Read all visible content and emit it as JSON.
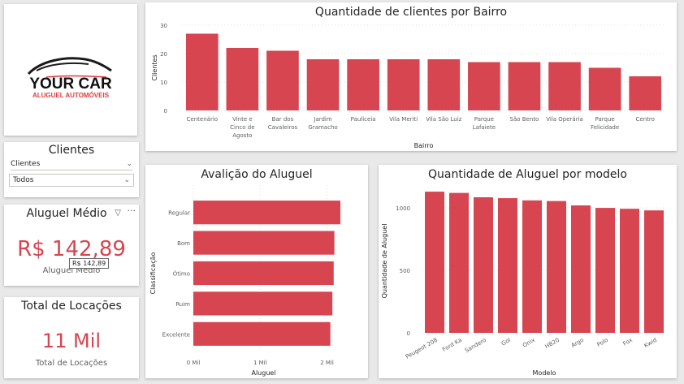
{
  "logo": {
    "brand": "YOUR CAR",
    "tagline": "ALUGUEL AUTOMÓVEIS",
    "accent": "#e03a3e"
  },
  "slicer": {
    "title": "Clientes",
    "field": "Clientes",
    "value": "Todos"
  },
  "kpi_avg": {
    "title": "Aluguel Médio",
    "value": "R$ 142,89",
    "label": "Aluguel Médio",
    "tooltip": "R$ 142,89"
  },
  "kpi_total": {
    "title": "Total de Locações",
    "value": "11 Mil",
    "label": "Total de Locações"
  },
  "colors": {
    "bar": "#d64550",
    "text": "#252423",
    "axis": "#605e5c"
  },
  "chart_data": [
    {
      "type": "bar",
      "title": "Quantidade de clientes por Bairro",
      "xlabel": "Bairro",
      "ylabel": "Clientes",
      "categories": [
        "Centenário",
        "Vinte e Cinco de Agosto",
        "Bar dos Cavaleiros",
        "Jardim Gramacho",
        "Pauliceia",
        "Vila Meriti",
        "Vila São Luiz",
        "Parque Lafaiete",
        "São Bento",
        "Vila Operária",
        "Parque Felicidade",
        "Centro"
      ],
      "category_lines": [
        [
          "Centenário"
        ],
        [
          "Vinte e",
          "Cinco de",
          "Agosto"
        ],
        [
          "Bar dos",
          "Cavaleiros"
        ],
        [
          "Jardim",
          "Gramacho"
        ],
        [
          "Pauliceia"
        ],
        [
          "Vila Meriti"
        ],
        [
          "Vila São Luiz"
        ],
        [
          "Parque",
          "Lafaiete"
        ],
        [
          "São Bento"
        ],
        [
          "Vila Operária"
        ],
        [
          "Parque",
          "Felicidade"
        ],
        [
          "Centro"
        ]
      ],
      "values": [
        27,
        22,
        21,
        18,
        18,
        18,
        18,
        17,
        17,
        17,
        15,
        12
      ],
      "ylim": [
        0,
        30
      ],
      "yticks": [
        0,
        10,
        20,
        30
      ]
    },
    {
      "type": "bar",
      "orientation": "horizontal",
      "title": "Avalição do Aluguel",
      "xlabel": "Aluguel",
      "ylabel": "Classificação",
      "categories": [
        "Regular",
        "Bom",
        "Ótimo",
        "Ruim",
        "Excelente"
      ],
      "values": [
        2200,
        2110,
        2100,
        2080,
        2050
      ],
      "xlim": [
        0,
        2200
      ],
      "xticks": [
        0,
        1000,
        2000
      ],
      "xtick_labels": [
        "0 Mil",
        "1 Mil",
        "2 Mil"
      ]
    },
    {
      "type": "bar",
      "title": "Quantidade de Aluguel por modelo",
      "xlabel": "Modelo",
      "ylabel": "Quantidade de Aluguel",
      "categories": [
        "Peugeot 208",
        "Ford Ka",
        "Sandero",
        "Gol",
        "Onix",
        "HB20",
        "Argo",
        "Polo",
        "Fox",
        "Kwid"
      ],
      "values": [
        1130,
        1120,
        1085,
        1078,
        1060,
        1055,
        1020,
        1000,
        993,
        980
      ],
      "ylim": [
        0,
        1150
      ],
      "yticks": [
        0,
        500,
        1000
      ]
    }
  ]
}
